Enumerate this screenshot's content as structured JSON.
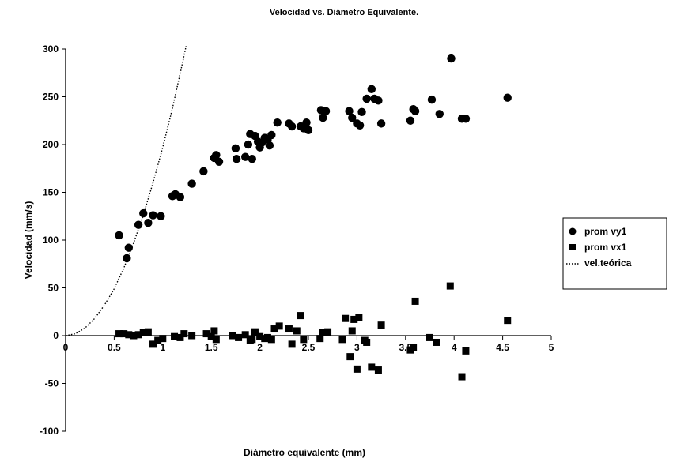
{
  "chart_data": {
    "type": "scatter",
    "title": "Velocidad vs. Diámetro Equivalente.",
    "xlabel": "Diámetro equivalente (mm)",
    "ylabel": "Velocidad (mm/s)",
    "xlim": [
      0,
      5
    ],
    "ylim": [
      -100,
      300
    ],
    "x_ticks": [
      "0",
      "0.5",
      "1",
      "1.5",
      "2",
      "2.5",
      "3",
      "3.5",
      "4",
      "4.5",
      "5"
    ],
    "y_ticks": [
      "300",
      "250",
      "200",
      "150",
      "100",
      "50",
      "0",
      "-50",
      "-100"
    ],
    "grid": false,
    "legend_position": "right",
    "series": [
      {
        "name": "prom vy1",
        "marker": "circle",
        "color": "#000000",
        "points": [
          [
            0.55,
            105
          ],
          [
            0.63,
            81
          ],
          [
            0.65,
            92
          ],
          [
            0.75,
            116
          ],
          [
            0.8,
            128
          ],
          [
            0.85,
            118
          ],
          [
            0.9,
            126
          ],
          [
            0.98,
            125
          ],
          [
            1.1,
            146
          ],
          [
            1.13,
            148
          ],
          [
            1.18,
            145
          ],
          [
            1.3,
            159
          ],
          [
            1.42,
            172
          ],
          [
            1.53,
            186
          ],
          [
            1.55,
            189
          ],
          [
            1.58,
            182
          ],
          [
            1.75,
            196
          ],
          [
            1.76,
            185
          ],
          [
            1.85,
            187
          ],
          [
            1.88,
            200
          ],
          [
            1.9,
            211
          ],
          [
            1.92,
            185
          ],
          [
            1.95,
            209
          ],
          [
            1.98,
            203
          ],
          [
            2.0,
            197
          ],
          [
            2.02,
            202
          ],
          [
            2.05,
            207
          ],
          [
            2.08,
            205
          ],
          [
            2.1,
            199
          ],
          [
            2.12,
            210
          ],
          [
            2.18,
            223
          ],
          [
            2.3,
            222
          ],
          [
            2.33,
            219
          ],
          [
            2.42,
            219
          ],
          [
            2.45,
            217
          ],
          [
            2.48,
            223
          ],
          [
            2.5,
            215
          ],
          [
            2.63,
            236
          ],
          [
            2.65,
            228
          ],
          [
            2.68,
            235
          ],
          [
            2.92,
            235
          ],
          [
            2.95,
            228
          ],
          [
            3.0,
            222
          ],
          [
            3.03,
            220
          ],
          [
            3.05,
            234
          ],
          [
            3.1,
            248
          ],
          [
            3.15,
            258
          ],
          [
            3.18,
            248
          ],
          [
            3.22,
            246
          ],
          [
            3.25,
            222
          ],
          [
            3.55,
            225
          ],
          [
            3.58,
            237
          ],
          [
            3.6,
            235
          ],
          [
            3.77,
            247
          ],
          [
            3.85,
            232
          ],
          [
            3.97,
            290
          ],
          [
            4.08,
            227
          ],
          [
            4.12,
            227
          ],
          [
            4.55,
            249
          ]
        ]
      },
      {
        "name": "prom vx1",
        "marker": "square",
        "color": "#000000",
        "points": [
          [
            0.55,
            2
          ],
          [
            0.6,
            2
          ],
          [
            0.65,
            1
          ],
          [
            0.7,
            0
          ],
          [
            0.75,
            1
          ],
          [
            0.8,
            3
          ],
          [
            0.85,
            4
          ],
          [
            0.9,
            -9
          ],
          [
            0.95,
            -5
          ],
          [
            1.0,
            -3
          ],
          [
            1.12,
            -1
          ],
          [
            1.18,
            -2
          ],
          [
            1.22,
            2
          ],
          [
            1.3,
            0
          ],
          [
            1.45,
            2
          ],
          [
            1.5,
            -1
          ],
          [
            1.53,
            5
          ],
          [
            1.55,
            -4
          ],
          [
            1.72,
            0
          ],
          [
            1.78,
            -2
          ],
          [
            1.85,
            1
          ],
          [
            1.9,
            -5
          ],
          [
            1.92,
            -4
          ],
          [
            1.95,
            4
          ],
          [
            2.0,
            -1
          ],
          [
            2.05,
            -3
          ],
          [
            2.08,
            -2
          ],
          [
            2.12,
            -4
          ],
          [
            2.15,
            7
          ],
          [
            2.2,
            10
          ],
          [
            2.3,
            7
          ],
          [
            2.33,
            -9
          ],
          [
            2.38,
            5
          ],
          [
            2.42,
            21
          ],
          [
            2.45,
            -4
          ],
          [
            2.62,
            -3
          ],
          [
            2.65,
            3
          ],
          [
            2.7,
            4
          ],
          [
            2.85,
            -4
          ],
          [
            2.88,
            18
          ],
          [
            2.93,
            -22
          ],
          [
            2.95,
            5
          ],
          [
            2.97,
            17
          ],
          [
            3.0,
            -35
          ],
          [
            3.02,
            19
          ],
          [
            3.08,
            -5
          ],
          [
            3.1,
            -7
          ],
          [
            3.15,
            -33
          ],
          [
            3.22,
            -36
          ],
          [
            3.25,
            11
          ],
          [
            3.55,
            -15
          ],
          [
            3.58,
            -12
          ],
          [
            3.6,
            36
          ],
          [
            3.75,
            -2
          ],
          [
            3.82,
            -7
          ],
          [
            3.96,
            52
          ],
          [
            4.08,
            -43
          ],
          [
            4.12,
            -16
          ],
          [
            4.55,
            16
          ]
        ]
      },
      {
        "name": "vel.teórica",
        "style": "dotted-line",
        "color": "#000000",
        "points": [
          [
            0,
            0
          ],
          [
            0.1,
            2
          ],
          [
            0.2,
            8
          ],
          [
            0.3,
            18
          ],
          [
            0.4,
            32
          ],
          [
            0.5,
            49
          ],
          [
            0.6,
            71
          ],
          [
            0.7,
            97
          ],
          [
            0.8,
            126
          ],
          [
            0.9,
            160
          ],
          [
            1.0,
            197
          ],
          [
            1.1,
            238
          ],
          [
            1.2,
            284
          ],
          [
            1.24,
            303
          ]
        ]
      }
    ]
  }
}
